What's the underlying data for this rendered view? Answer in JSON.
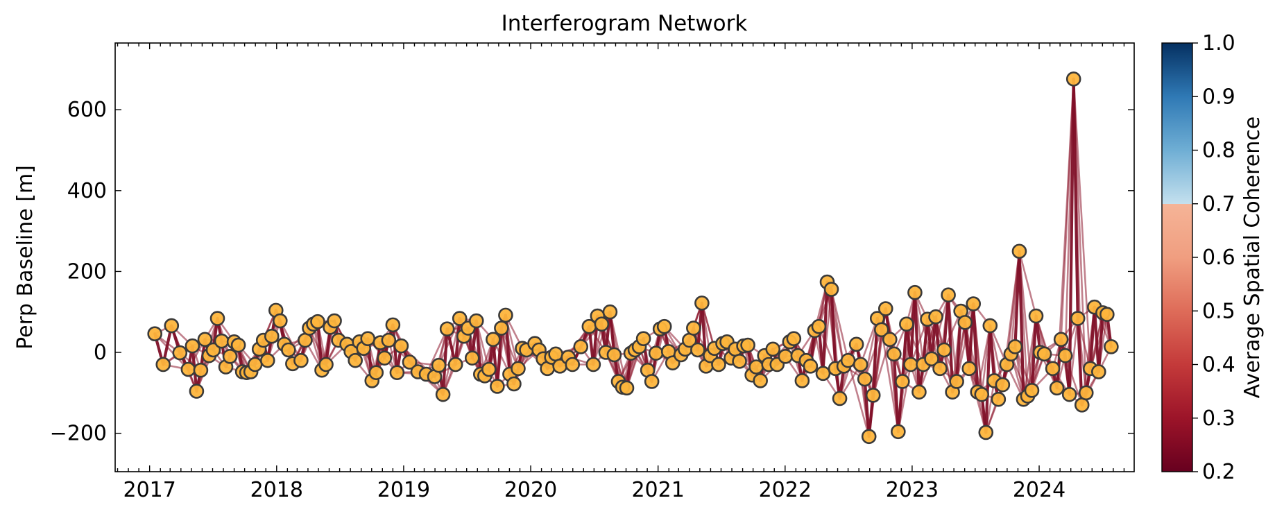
{
  "chart_data": {
    "type": "scatter",
    "title": "Interferogram Network",
    "xlabel": "",
    "ylabel": "Perp Baseline [m]",
    "x_ticks": [
      "2017",
      "2018",
      "2019",
      "2020",
      "2021",
      "2022",
      "2023",
      "2024"
    ],
    "y_ticks": [
      "−200",
      "0",
      "200",
      "400",
      "600"
    ],
    "xlim": [
      "2016-09-24",
      "2024-09-30"
    ],
    "ylim": [
      -295,
      765
    ],
    "grid": false,
    "colorbar": {
      "label": "Average Spatial Coherence",
      "range": [
        0.2,
        1.0
      ],
      "ticks": [
        "0.2",
        "0.3",
        "0.4",
        "0.5",
        "0.6",
        "0.7",
        "0.8",
        "0.9",
        "1.0"
      ],
      "colormap": "RdBu (diverging, red low → blue high)",
      "white_gap_at": 0.7
    },
    "colors": {
      "edge": "#8e1a2f",
      "edge_strong": "#7f1028",
      "node_fill": "#fdb53c",
      "node_outline": "#3a3a3a"
    },
    "acquisitions": [
      {
        "date": "2017-01-16",
        "bperp": 46
      },
      {
        "date": "2017-02-09",
        "bperp": -30
      },
      {
        "date": "2017-03-05",
        "bperp": 66
      },
      {
        "date": "2017-03-29",
        "bperp": -1
      },
      {
        "date": "2017-04-22",
        "bperp": -42
      },
      {
        "date": "2017-05-04",
        "bperp": 16
      },
      {
        "date": "2017-05-16",
        "bperp": -96
      },
      {
        "date": "2017-05-28",
        "bperp": -44
      },
      {
        "date": "2017-06-09",
        "bperp": 32
      },
      {
        "date": "2017-06-21",
        "bperp": -8
      },
      {
        "date": "2017-07-03",
        "bperp": 6
      },
      {
        "date": "2017-07-15",
        "bperp": 84
      },
      {
        "date": "2017-07-27",
        "bperp": 28
      },
      {
        "date": "2017-08-08",
        "bperp": -36
      },
      {
        "date": "2017-08-20",
        "bperp": -10
      },
      {
        "date": "2017-09-01",
        "bperp": 26
      },
      {
        "date": "2017-09-13",
        "bperp": 18
      },
      {
        "date": "2017-09-25",
        "bperp": -48
      },
      {
        "date": "2017-10-07",
        "bperp": -50
      },
      {
        "date": "2017-10-19",
        "bperp": -48
      },
      {
        "date": "2017-10-31",
        "bperp": -30
      },
      {
        "date": "2017-11-12",
        "bperp": 8
      },
      {
        "date": "2017-11-24",
        "bperp": 30
      },
      {
        "date": "2017-12-06",
        "bperp": -20
      },
      {
        "date": "2017-12-18",
        "bperp": 40
      },
      {
        "date": "2017-12-30",
        "bperp": 104
      },
      {
        "date": "2018-01-11",
        "bperp": 78
      },
      {
        "date": "2018-01-23",
        "bperp": 20
      },
      {
        "date": "2018-02-04",
        "bperp": 6
      },
      {
        "date": "2018-02-16",
        "bperp": -28
      },
      {
        "date": "2018-03-12",
        "bperp": -20
      },
      {
        "date": "2018-03-24",
        "bperp": 30
      },
      {
        "date": "2018-04-05",
        "bperp": 60
      },
      {
        "date": "2018-04-17",
        "bperp": 70
      },
      {
        "date": "2018-04-29",
        "bperp": 76
      },
      {
        "date": "2018-05-11",
        "bperp": -44
      },
      {
        "date": "2018-05-23",
        "bperp": -30
      },
      {
        "date": "2018-06-04",
        "bperp": 62
      },
      {
        "date": "2018-06-16",
        "bperp": 78
      },
      {
        "date": "2018-06-28",
        "bperp": 30
      },
      {
        "date": "2018-07-22",
        "bperp": 20
      },
      {
        "date": "2018-08-03",
        "bperp": 2
      },
      {
        "date": "2018-08-15",
        "bperp": -20
      },
      {
        "date": "2018-08-27",
        "bperp": 26
      },
      {
        "date": "2018-09-08",
        "bperp": 10
      },
      {
        "date": "2018-09-20",
        "bperp": 34
      },
      {
        "date": "2018-10-02",
        "bperp": -70
      },
      {
        "date": "2018-10-14",
        "bperp": -50
      },
      {
        "date": "2018-10-26",
        "bperp": 24
      },
      {
        "date": "2018-11-07",
        "bperp": -14
      },
      {
        "date": "2018-11-19",
        "bperp": 30
      },
      {
        "date": "2018-12-01",
        "bperp": 68
      },
      {
        "date": "2018-12-13",
        "bperp": -50
      },
      {
        "date": "2018-12-25",
        "bperp": 16
      },
      {
        "date": "2019-01-18",
        "bperp": -24
      },
      {
        "date": "2019-02-11",
        "bperp": -48
      },
      {
        "date": "2019-03-07",
        "bperp": -54
      },
      {
        "date": "2019-03-31",
        "bperp": -60
      },
      {
        "date": "2019-04-12",
        "bperp": -32
      },
      {
        "date": "2019-04-24",
        "bperp": -104
      },
      {
        "date": "2019-05-06",
        "bperp": 58
      },
      {
        "date": "2019-05-30",
        "bperp": -30
      },
      {
        "date": "2019-06-11",
        "bperp": 84
      },
      {
        "date": "2019-06-23",
        "bperp": 40
      },
      {
        "date": "2019-07-05",
        "bperp": 60
      },
      {
        "date": "2019-07-17",
        "bperp": -14
      },
      {
        "date": "2019-07-29",
        "bperp": 78
      },
      {
        "date": "2019-08-10",
        "bperp": -54
      },
      {
        "date": "2019-08-22",
        "bperp": -58
      },
      {
        "date": "2019-09-03",
        "bperp": -42
      },
      {
        "date": "2019-09-15",
        "bperp": 32
      },
      {
        "date": "2019-09-27",
        "bperp": -84
      },
      {
        "date": "2019-10-09",
        "bperp": 60
      },
      {
        "date": "2019-10-21",
        "bperp": 92
      },
      {
        "date": "2019-11-02",
        "bperp": -54
      },
      {
        "date": "2019-11-14",
        "bperp": -78
      },
      {
        "date": "2019-11-26",
        "bperp": -40
      },
      {
        "date": "2019-12-08",
        "bperp": 10
      },
      {
        "date": "2019-12-20",
        "bperp": 6
      },
      {
        "date": "2020-01-13",
        "bperp": 22
      },
      {
        "date": "2020-01-25",
        "bperp": 6
      },
      {
        "date": "2020-02-06",
        "bperp": -16
      },
      {
        "date": "2020-02-18",
        "bperp": -40
      },
      {
        "date": "2020-03-01",
        "bperp": -12
      },
      {
        "date": "2020-03-13",
        "bperp": -4
      },
      {
        "date": "2020-03-25",
        "bperp": -34
      },
      {
        "date": "2020-04-18",
        "bperp": -12
      },
      {
        "date": "2020-04-30",
        "bperp": -30
      },
      {
        "date": "2020-05-24",
        "bperp": 14
      },
      {
        "date": "2020-06-17",
        "bperp": 64
      },
      {
        "date": "2020-06-29",
        "bperp": -30
      },
      {
        "date": "2020-07-11",
        "bperp": 90
      },
      {
        "date": "2020-07-23",
        "bperp": 70
      },
      {
        "date": "2020-08-04",
        "bperp": 0
      },
      {
        "date": "2020-08-16",
        "bperp": 100
      },
      {
        "date": "2020-08-28",
        "bperp": -6
      },
      {
        "date": "2020-09-09",
        "bperp": -72
      },
      {
        "date": "2020-09-21",
        "bperp": -86
      },
      {
        "date": "2020-10-03",
        "bperp": -88
      },
      {
        "date": "2020-10-15",
        "bperp": -2
      },
      {
        "date": "2020-10-27",
        "bperp": 6
      },
      {
        "date": "2020-11-08",
        "bperp": 14
      },
      {
        "date": "2020-11-20",
        "bperp": 34
      },
      {
        "date": "2020-12-02",
        "bperp": -44
      },
      {
        "date": "2020-12-14",
        "bperp": -72
      },
      {
        "date": "2020-12-26",
        "bperp": -2
      },
      {
        "date": "2021-01-07",
        "bperp": 58
      },
      {
        "date": "2021-01-19",
        "bperp": 64
      },
      {
        "date": "2021-01-31",
        "bperp": 2
      },
      {
        "date": "2021-02-12",
        "bperp": -26
      },
      {
        "date": "2021-03-08",
        "bperp": -6
      },
      {
        "date": "2021-03-20",
        "bperp": 8
      },
      {
        "date": "2021-04-01",
        "bperp": 30
      },
      {
        "date": "2021-04-13",
        "bperp": 60
      },
      {
        "date": "2021-04-25",
        "bperp": 6
      },
      {
        "date": "2021-05-07",
        "bperp": 122
      },
      {
        "date": "2021-05-19",
        "bperp": -34
      },
      {
        "date": "2021-05-31",
        "bperp": -8
      },
      {
        "date": "2021-06-12",
        "bperp": 10
      },
      {
        "date": "2021-06-24",
        "bperp": -30
      },
      {
        "date": "2021-07-06",
        "bperp": 22
      },
      {
        "date": "2021-07-18",
        "bperp": 26
      },
      {
        "date": "2021-07-30",
        "bperp": -14
      },
      {
        "date": "2021-08-11",
        "bperp": 8
      },
      {
        "date": "2021-08-23",
        "bperp": -22
      },
      {
        "date": "2021-09-04",
        "bperp": 16
      },
      {
        "date": "2021-09-16",
        "bperp": 18
      },
      {
        "date": "2021-09-28",
        "bperp": -56
      },
      {
        "date": "2021-10-10",
        "bperp": -36
      },
      {
        "date": "2021-10-22",
        "bperp": -70
      },
      {
        "date": "2021-11-03",
        "bperp": -8
      },
      {
        "date": "2021-11-15",
        "bperp": -30
      },
      {
        "date": "2021-11-27",
        "bperp": 8
      },
      {
        "date": "2021-12-09",
        "bperp": -30
      },
      {
        "date": "2022-01-02",
        "bperp": -10
      },
      {
        "date": "2022-01-14",
        "bperp": 26
      },
      {
        "date": "2022-01-26",
        "bperp": 34
      },
      {
        "date": "2022-02-07",
        "bperp": -8
      },
      {
        "date": "2022-02-19",
        "bperp": -70
      },
      {
        "date": "2022-03-03",
        "bperp": -20
      },
      {
        "date": "2022-03-15",
        "bperp": -34
      },
      {
        "date": "2022-03-27",
        "bperp": 54
      },
      {
        "date": "2022-04-08",
        "bperp": 64
      },
      {
        "date": "2022-04-20",
        "bperp": -52
      },
      {
        "date": "2022-05-02",
        "bperp": 174
      },
      {
        "date": "2022-05-14",
        "bperp": 156
      },
      {
        "date": "2022-05-26",
        "bperp": -40
      },
      {
        "date": "2022-06-07",
        "bperp": -114
      },
      {
        "date": "2022-06-19",
        "bperp": -34
      },
      {
        "date": "2022-07-01",
        "bperp": -20
      },
      {
        "date": "2022-07-25",
        "bperp": 20
      },
      {
        "date": "2022-08-06",
        "bperp": -30
      },
      {
        "date": "2022-08-18",
        "bperp": -66
      },
      {
        "date": "2022-08-30",
        "bperp": -208
      },
      {
        "date": "2022-09-11",
        "bperp": -106
      },
      {
        "date": "2022-09-23",
        "bperp": 84
      },
      {
        "date": "2022-10-05",
        "bperp": 56
      },
      {
        "date": "2022-10-17",
        "bperp": 108
      },
      {
        "date": "2022-10-29",
        "bperp": 32
      },
      {
        "date": "2022-11-10",
        "bperp": -4
      },
      {
        "date": "2022-11-22",
        "bperp": -196
      },
      {
        "date": "2022-12-04",
        "bperp": -72
      },
      {
        "date": "2022-12-16",
        "bperp": 70
      },
      {
        "date": "2022-12-28",
        "bperp": -30
      },
      {
        "date": "2023-01-09",
        "bperp": 148
      },
      {
        "date": "2023-01-21",
        "bperp": -98
      },
      {
        "date": "2023-02-02",
        "bperp": -30
      },
      {
        "date": "2023-02-14",
        "bperp": 82
      },
      {
        "date": "2023-02-26",
        "bperp": -16
      },
      {
        "date": "2023-03-10",
        "bperp": 88
      },
      {
        "date": "2023-03-22",
        "bperp": -40
      },
      {
        "date": "2023-04-03",
        "bperp": 6
      },
      {
        "date": "2023-04-15",
        "bperp": 142
      },
      {
        "date": "2023-04-27",
        "bperp": -98
      },
      {
        "date": "2023-05-09",
        "bperp": -72
      },
      {
        "date": "2023-05-21",
        "bperp": 102
      },
      {
        "date": "2023-06-02",
        "bperp": 74
      },
      {
        "date": "2023-06-14",
        "bperp": -40
      },
      {
        "date": "2023-06-26",
        "bperp": 120
      },
      {
        "date": "2023-07-08",
        "bperp": -98
      },
      {
        "date": "2023-07-20",
        "bperp": -104
      },
      {
        "date": "2023-08-01",
        "bperp": -198
      },
      {
        "date": "2023-08-13",
        "bperp": 66
      },
      {
        "date": "2023-08-25",
        "bperp": -70
      },
      {
        "date": "2023-09-06",
        "bperp": -116
      },
      {
        "date": "2023-09-18",
        "bperp": -80
      },
      {
        "date": "2023-09-30",
        "bperp": -30
      },
      {
        "date": "2023-10-12",
        "bperp": -4
      },
      {
        "date": "2023-10-24",
        "bperp": 14
      },
      {
        "date": "2023-11-05",
        "bperp": 250
      },
      {
        "date": "2023-11-17",
        "bperp": -116
      },
      {
        "date": "2023-11-29",
        "bperp": -108
      },
      {
        "date": "2023-12-11",
        "bperp": -94
      },
      {
        "date": "2023-12-23",
        "bperp": 90
      },
      {
        "date": "2024-01-04",
        "bperp": 0
      },
      {
        "date": "2024-01-16",
        "bperp": -4
      },
      {
        "date": "2024-02-09",
        "bperp": -40
      },
      {
        "date": "2024-02-21",
        "bperp": -88
      },
      {
        "date": "2024-03-04",
        "bperp": 32
      },
      {
        "date": "2024-03-16",
        "bperp": -8
      },
      {
        "date": "2024-03-28",
        "bperp": -104
      },
      {
        "date": "2024-04-09",
        "bperp": 676
      },
      {
        "date": "2024-04-21",
        "bperp": 84
      },
      {
        "date": "2024-05-03",
        "bperp": -130
      },
      {
        "date": "2024-05-15",
        "bperp": -100
      },
      {
        "date": "2024-05-27",
        "bperp": -40
      },
      {
        "date": "2024-06-08",
        "bperp": 112
      },
      {
        "date": "2024-06-20",
        "bperp": -48
      },
      {
        "date": "2024-07-02",
        "bperp": 98
      },
      {
        "date": "2024-07-14",
        "bperp": 94
      },
      {
        "date": "2024-07-26",
        "bperp": 14
      }
    ],
    "connection_order": 4
  }
}
